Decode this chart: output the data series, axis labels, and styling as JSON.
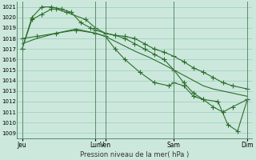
{
  "title": "Pression niveau de la mer( hPa )",
  "bg_color": "#cce8dc",
  "grid_color": "#99ccbb",
  "line_color": "#2d6e2d",
  "vline_color": "#5a8a6a",
  "ylim": [
    1008.5,
    1021.5
  ],
  "yticks": [
    1009,
    1010,
    1011,
    1012,
    1013,
    1014,
    1015,
    1016,
    1017,
    1018,
    1019,
    1020,
    1021
  ],
  "xlim": [
    0,
    24
  ],
  "xtick_positions": [
    0.5,
    8.0,
    9.0,
    16.0,
    23.5
  ],
  "xtick_labels": [
    "Jeu",
    "Lun",
    "Ven",
    "Sam",
    "Dim"
  ],
  "vline_positions": [
    0.5,
    8.0,
    9.0,
    16.0,
    23.5
  ],
  "series1_x": [
    0.5,
    1.5,
    2.5,
    3.5,
    4.0,
    5.0,
    7.0,
    8.0,
    9.0,
    10.0,
    11.0,
    12.0,
    13.0,
    14.0,
    15.0,
    16.0,
    17.0,
    18.0,
    19.0,
    20.0,
    21.0,
    22.0,
    23.5
  ],
  "series1_y": [
    1017.0,
    1019.8,
    1020.3,
    1020.8,
    1020.8,
    1020.5,
    1019.8,
    1019.0,
    1018.5,
    1018.3,
    1018.2,
    1018.0,
    1017.5,
    1017.0,
    1016.7,
    1016.3,
    1015.8,
    1015.2,
    1014.8,
    1014.3,
    1013.8,
    1013.5,
    1013.2
  ],
  "series1_markers": [
    0,
    1,
    2,
    3,
    5,
    7,
    8,
    9,
    10,
    11,
    12,
    13,
    14,
    15,
    16,
    17,
    18,
    19,
    20,
    21,
    22
  ],
  "series2_x": [
    0.5,
    2.0,
    4.0,
    6.0,
    8.0,
    9.0,
    10.5,
    12.0,
    13.5,
    15.0,
    16.0,
    17.0,
    18.0,
    19.0,
    20.0,
    21.0,
    22.0,
    23.5
  ],
  "series2_y": [
    1017.5,
    1018.0,
    1018.5,
    1018.9,
    1018.5,
    1018.2,
    1017.5,
    1016.8,
    1016.2,
    1015.5,
    1015.0,
    1014.5,
    1014.0,
    1013.5,
    1013.2,
    1013.0,
    1012.8,
    1012.5
  ],
  "series3_x": [
    0.5,
    1.5,
    2.5,
    3.5,
    4.5,
    5.5,
    6.5,
    7.5,
    8.0,
    9.0,
    10.0,
    11.0,
    12.0,
    13.0,
    14.0,
    15.0,
    16.0,
    17.0,
    18.0,
    19.0,
    20.0,
    21.0,
    22.0,
    23.5
  ],
  "series3_y": [
    1017.0,
    1020.0,
    1021.0,
    1021.0,
    1020.8,
    1020.5,
    1019.5,
    1019.0,
    1018.8,
    1018.5,
    1018.3,
    1018.0,
    1017.5,
    1017.0,
    1016.5,
    1016.0,
    1015.0,
    1013.8,
    1012.8,
    1012.2,
    1011.5,
    1011.0,
    1011.5,
    1012.2
  ],
  "series4_x": [
    0.5,
    2.0,
    4.0,
    6.0,
    8.0,
    9.0,
    10.0,
    11.0,
    12.5,
    14.0,
    15.5,
    16.0,
    17.0,
    18.0,
    19.0,
    20.5,
    21.5,
    22.5,
    23.5
  ],
  "series4_y": [
    1018.0,
    1018.2,
    1018.5,
    1018.8,
    1018.5,
    1018.2,
    1017.0,
    1016.0,
    1014.8,
    1013.8,
    1013.5,
    1013.8,
    1013.5,
    1012.5,
    1012.2,
    1012.0,
    1009.8,
    1009.2,
    1012.2
  ]
}
